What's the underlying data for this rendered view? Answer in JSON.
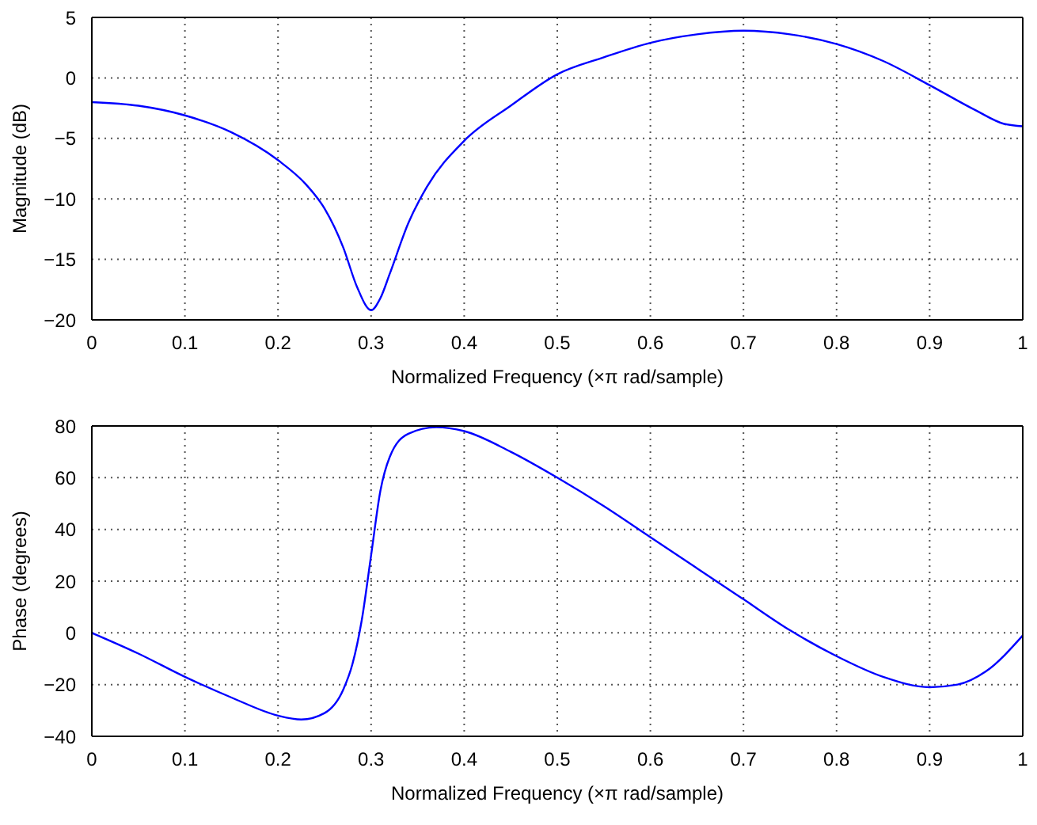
{
  "chart_data": [
    {
      "type": "line",
      "xlabel": "Normalized Frequency  (×π rad/sample)",
      "ylabel": "Magnitude (dB)",
      "xlim": [
        0,
        1
      ],
      "xticks": [
        0,
        0.1,
        0.2,
        0.3,
        0.4,
        0.5,
        0.6,
        0.7,
        0.8,
        0.9,
        1
      ],
      "ylim": [
        -20,
        5
      ],
      "yticks": [
        -20,
        -15,
        -10,
        -5,
        0,
        5
      ],
      "grid": true,
      "line_style": "solid",
      "marker": "none",
      "legend": false,
      "x": [
        0,
        0.05,
        0.1,
        0.15,
        0.2,
        0.23,
        0.25,
        0.27,
        0.285,
        0.3,
        0.31,
        0.32,
        0.34,
        0.36,
        0.4,
        0.45,
        0.5,
        0.55,
        0.6,
        0.65,
        0.7,
        0.75,
        0.8,
        0.85,
        0.9,
        0.95,
        0.98,
        1
      ],
      "series": [
        {
          "color": "#0000ff",
          "values": [
            -2,
            -2.3,
            -3.1,
            -4.5,
            -6.8,
            -8.8,
            -10.8,
            -14,
            -17.3,
            -19.2,
            -18.2,
            -16.2,
            -12,
            -9,
            -5.2,
            -2.3,
            0.3,
            1.7,
            2.9,
            3.6,
            3.9,
            3.6,
            2.8,
            1.4,
            -0.6,
            -2.7,
            -3.8,
            -4
          ]
        }
      ]
    },
    {
      "type": "line",
      "xlabel": "Normalized Frequency  (×π rad/sample)",
      "ylabel": "Phase (degrees)",
      "xlim": [
        0,
        1
      ],
      "xticks": [
        0,
        0.1,
        0.2,
        0.3,
        0.4,
        0.5,
        0.6,
        0.7,
        0.8,
        0.9,
        1
      ],
      "ylim": [
        -40,
        80
      ],
      "yticks": [
        -40,
        -20,
        0,
        20,
        40,
        60,
        80
      ],
      "grid": true,
      "line_style": "solid",
      "marker": "none",
      "legend": false,
      "x": [
        0,
        0.05,
        0.1,
        0.15,
        0.2,
        0.225,
        0.25,
        0.27,
        0.28,
        0.29,
        0.3,
        0.31,
        0.32,
        0.34,
        0.37,
        0.4,
        0.45,
        0.5,
        0.55,
        0.6,
        0.65,
        0.7,
        0.75,
        0.8,
        0.85,
        0.9,
        0.93,
        0.96,
        1
      ],
      "series": [
        {
          "color": "#0000ff",
          "values": [
            0,
            -8,
            -17,
            -25,
            -32,
            -33.5,
            -31,
            -22,
            -12,
            5,
            30,
            55,
            68,
            77,
            79.5,
            78,
            70,
            60,
            49,
            37,
            25,
            13,
            1,
            -9,
            -17,
            -21,
            -20,
            -15,
            -1
          ]
        }
      ]
    }
  ]
}
